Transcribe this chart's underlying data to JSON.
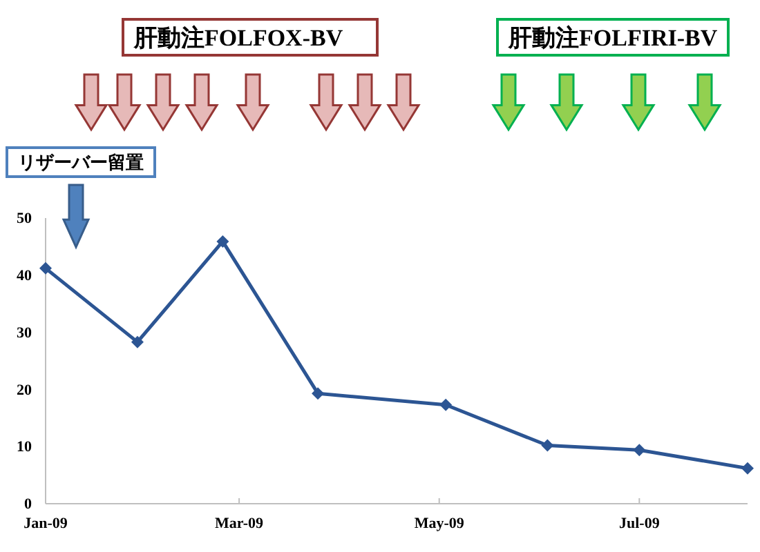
{
  "chart_data": {
    "type": "line",
    "x": [
      "2009-01-01",
      "2009-01-29",
      "2009-02-24",
      "2009-03-25",
      "2009-05-03",
      "2009-06-03",
      "2009-07-01",
      "2009-08-03"
    ],
    "series": [
      {
        "color": "#2c5593",
        "values": [
          41.2,
          28.3,
          45.9,
          19.3,
          17.3,
          10.2,
          9.4,
          6.2
        ]
      }
    ],
    "xlim": [
      "2009-01-01",
      "2009-08-03"
    ],
    "xticks": [
      {
        "value": "2009-01-01",
        "label": "Jan-09"
      },
      {
        "value": "2009-03-01",
        "label": "Mar-09"
      },
      {
        "value": "2009-05-01",
        "label": "May-09"
      },
      {
        "value": "2009-07-01",
        "label": "Jul-09"
      }
    ],
    "ylim": [
      0,
      50
    ],
    "yticks": [
      0,
      10,
      20,
      30,
      40,
      50
    ],
    "marker": "diamond",
    "annotations": [
      "肝動注FOLFOX-BV",
      "肝動注FOLFIRI-BV",
      "リザーバー留置"
    ]
  }
}
